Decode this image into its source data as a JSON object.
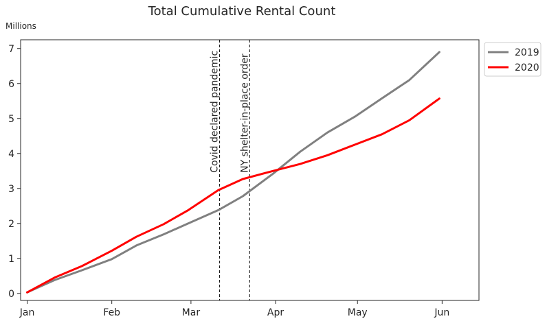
{
  "chart_data": {
    "type": "line",
    "title": "Total Cumulative Rental Count",
    "ylabel_unit": "Millions",
    "xlabel": "",
    "ylabel": "",
    "x_tick_labels": [
      "Jan",
      "Feb",
      "Mar",
      "Apr",
      "May",
      "Jun"
    ],
    "y_ticks": [
      0,
      1,
      2,
      3,
      4,
      5,
      6,
      7
    ],
    "ylim": [
      -0.2,
      7.25
    ],
    "xlim_days": [
      -2.4,
      165.5
    ],
    "grid": false,
    "legend_position": "outside-top-right",
    "series": [
      {
        "name": "2019",
        "color": "#808080",
        "points": [
          [
            0,
            0.03
          ],
          [
            10,
            0.38
          ],
          [
            20,
            0.66
          ],
          [
            31,
            0.98
          ],
          [
            40,
            1.37
          ],
          [
            50,
            1.69
          ],
          [
            59,
            2.0
          ],
          [
            70,
            2.38
          ],
          [
            79,
            2.78
          ],
          [
            90,
            3.42
          ],
          [
            100,
            4.05
          ],
          [
            110,
            4.6
          ],
          [
            120,
            5.05
          ],
          [
            130,
            5.58
          ],
          [
            140,
            6.1
          ],
          [
            151,
            6.9
          ]
        ]
      },
      {
        "name": "2020",
        "color": "#ff0000",
        "points": [
          [
            0,
            0.03
          ],
          [
            10,
            0.45
          ],
          [
            20,
            0.78
          ],
          [
            31,
            1.22
          ],
          [
            40,
            1.62
          ],
          [
            50,
            1.98
          ],
          [
            59,
            2.38
          ],
          [
            70,
            2.95
          ],
          [
            79,
            3.27
          ],
          [
            90,
            3.5
          ],
          [
            100,
            3.7
          ],
          [
            110,
            3.95
          ],
          [
            120,
            4.25
          ],
          [
            130,
            4.55
          ],
          [
            140,
            4.95
          ],
          [
            151,
            5.57
          ]
        ]
      }
    ],
    "annotations": [
      {
        "label": "Covid declared pandemic",
        "day": 70.5
      },
      {
        "label": "NY shelter-in-place order",
        "day": 81.5
      }
    ]
  }
}
